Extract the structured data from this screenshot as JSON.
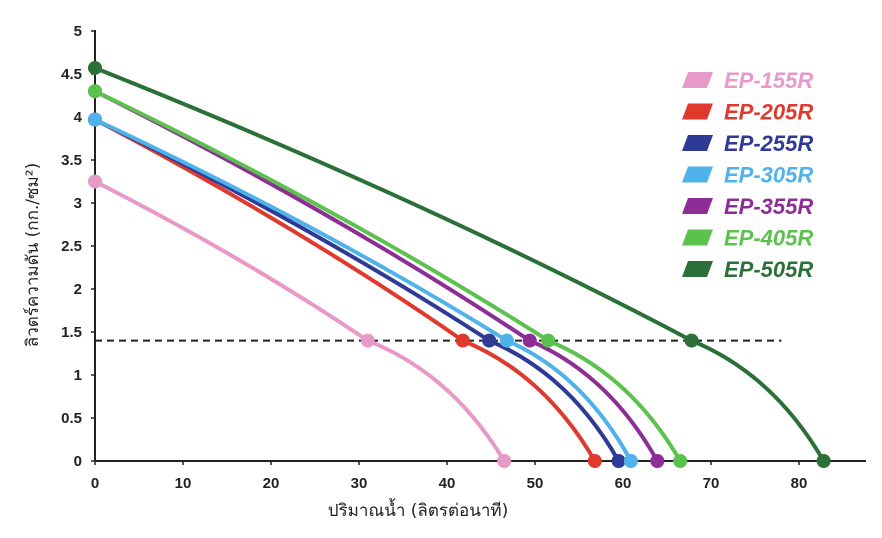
{
  "chart_data": {
    "type": "line",
    "title": "",
    "xlabel": "ปริมาณน้ำ (ลิตรต่อนาที)",
    "ylabel": "ลิวตร์ความดัน (กก./ซม²)",
    "xlim": [
      0,
      87
    ],
    "ylim": [
      0,
      5
    ],
    "x_ticks": [
      "0",
      "10",
      "20",
      "30",
      "40",
      "50",
      "60",
      "70",
      "80"
    ],
    "y_ticks": [
      "0",
      "0.5",
      "1",
      "1.5",
      "2",
      "2.5",
      "3",
      "3.5",
      "4",
      "4.5",
      "5"
    ],
    "reference_line": {
      "y": 1.4,
      "style": "dashed"
    },
    "legend_position": "top-right",
    "series": [
      {
        "name": "EP-155R",
        "color": "#e79ac8",
        "points": [
          [
            0,
            3.25
          ],
          [
            31,
            1.4
          ],
          [
            46.5,
            0
          ]
        ]
      },
      {
        "name": "EP-205R",
        "color": "#e03a2e",
        "points": [
          [
            0,
            3.97
          ],
          [
            41.8,
            1.4
          ],
          [
            56.8,
            0
          ]
        ]
      },
      {
        "name": "EP-255R",
        "color": "#2e3a96",
        "points": [
          [
            0,
            3.97
          ],
          [
            44.8,
            1.4
          ],
          [
            59.5,
            0
          ]
        ]
      },
      {
        "name": "EP-305R",
        "color": "#4fb2ea",
        "points": [
          [
            0,
            3.97
          ],
          [
            46.8,
            1.4
          ],
          [
            60.9,
            0
          ]
        ]
      },
      {
        "name": "EP-355R",
        "color": "#8d2e96",
        "points": [
          [
            0,
            4.3
          ],
          [
            49.4,
            1.4
          ],
          [
            63.9,
            0
          ]
        ]
      },
      {
        "name": "EP-405R",
        "color": "#5cc24e",
        "points": [
          [
            0,
            4.3
          ],
          [
            51.5,
            1.4
          ],
          [
            66.5,
            0
          ]
        ]
      },
      {
        "name": "EP-505R",
        "color": "#2a7038",
        "points": [
          [
            0,
            4.57
          ],
          [
            67.8,
            1.4
          ],
          [
            82.8,
            0
          ]
        ]
      }
    ]
  }
}
